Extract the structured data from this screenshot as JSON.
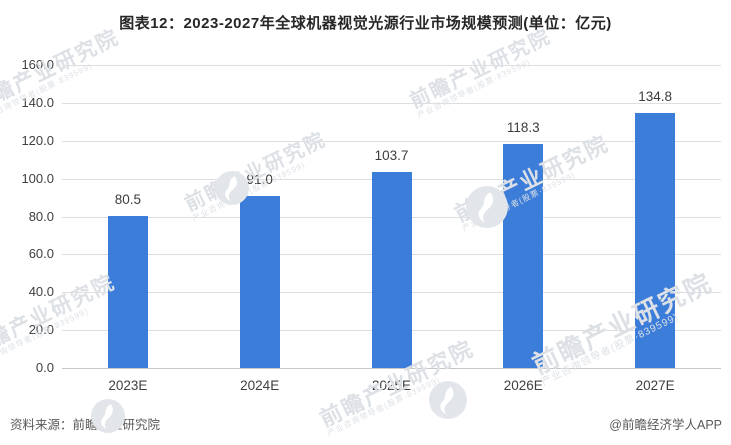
{
  "title": "图表12：2023-2027年全球机器视觉光源行业市场规模预测(单位：亿元)",
  "chart_data": {
    "type": "bar",
    "title": "图表12：2023-2027年全球机器视觉光源行业市场规模预测(单位：亿元)",
    "unit": "亿元",
    "categories": [
      "2023E",
      "2024E",
      "2025E",
      "2026E",
      "2027E"
    ],
    "values": [
      80.5,
      91.0,
      103.7,
      118.3,
      134.8
    ],
    "value_labels": [
      "80.5",
      "91.0",
      "103.7",
      "118.3",
      "134.8"
    ],
    "xlabel": "",
    "ylabel": "",
    "ylim": [
      0,
      160
    ],
    "ytick_step": 20,
    "ytick_labels": [
      "0.0",
      "20.0",
      "40.0",
      "60.0",
      "80.0",
      "100.0",
      "120.0",
      "140.0",
      "160.0"
    ],
    "grid": true,
    "legend": false,
    "bar_color": "#3c7dd9"
  },
  "watermark": {
    "main": "前瞻产业研究院",
    "sub": "产业咨询领导者(股票·839599)",
    "logo": "qianzhan-swoosh-logo"
  },
  "footer": {
    "source": "资料来源：前瞻产业研究院",
    "credit": "@前瞻经济学人APP"
  },
  "colors": {
    "bar": "#3c7dd9",
    "gridline": "#dedede",
    "axis_line": "#c6c6c6",
    "title_text": "#262626",
    "tick_text": "#404040",
    "footer_text": "#595959",
    "watermark": "#dde1e6",
    "background": "#ffffff"
  }
}
